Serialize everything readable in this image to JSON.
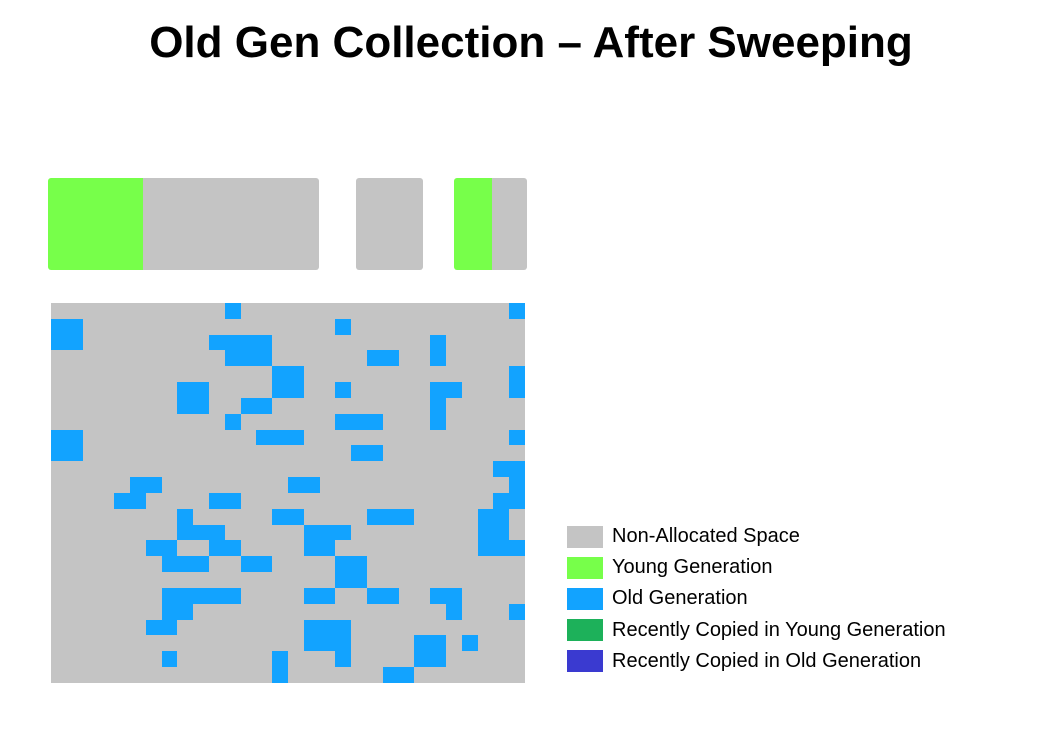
{
  "title": "Old Gen Collection – After Sweeping",
  "colors": {
    "non_allocated": "#C4C4C4",
    "young": "#77FF4A",
    "old": "#12A3FF",
    "recent_young": "#1DB15A",
    "recent_old": "#3A3AD0"
  },
  "young_generation": {
    "eden": {
      "young_fraction": 0.35
    },
    "survivor_1": {
      "young_fraction": 0.0
    },
    "survivor_2": {
      "young_fraction": 0.52
    }
  },
  "old_generation": {
    "columns": 30,
    "rows": 24,
    "map": [
      "00000000000O00000000000000000O",
      "OO0000000000000000O00000000000",
      "OO00000000OOOO0000000000O00000",
      "00000000000OOO000000OO00O00000",
      "00000000000000OO0000000000000O",
      "00000000OO0000OO00O00000OO000O",
      "00000000OO00OO0000000000O00000",
      "00000000000O000000OOO000O00000",
      "OO00000000000OOO0000000000000O",
      "OO00000000000000000OO000000000",
      "0000000000000000000000000000OO",
      "00000OO00000000OO000000000000O",
      "0000OO0000OO0000000000000000OO",
      "00000000O00000OO0000OOO0000OO0",
      "00000000OOO00000OOO00000000OO0",
      "000000OO00OO0000OO000000000OOO",
      "0000000OOO00OO0000OO0000000000",
      "000000000000000000OO0000000000",
      "0000000OOOOO0000OO00OO00OO0000",
      "0000000OO0000000000000000O000O",
      "000000OO00000000OOO00000000000",
      "0000000000000000OOO0000OO0O000",
      "0000000O000000O000O0000OO00000",
      "00000000000000O000000OO0000000"
    ]
  },
  "legend": [
    {
      "label": "Non-Allocated Space",
      "color": "#C4C4C4",
      "name": "legend-item-non-allocated"
    },
    {
      "label": "Young Generation",
      "color": "#77FF4A",
      "name": "legend-item-young"
    },
    {
      "label": "Old Generation",
      "color": "#12A3FF",
      "name": "legend-item-old"
    },
    {
      "label": "Recently Copied in Young Generation",
      "color": "#1DB15A",
      "name": "legend-item-recent-young"
    },
    {
      "label": "Recently Copied in Old Generation",
      "color": "#3A3AD0",
      "name": "legend-item-recent-old"
    }
  ]
}
